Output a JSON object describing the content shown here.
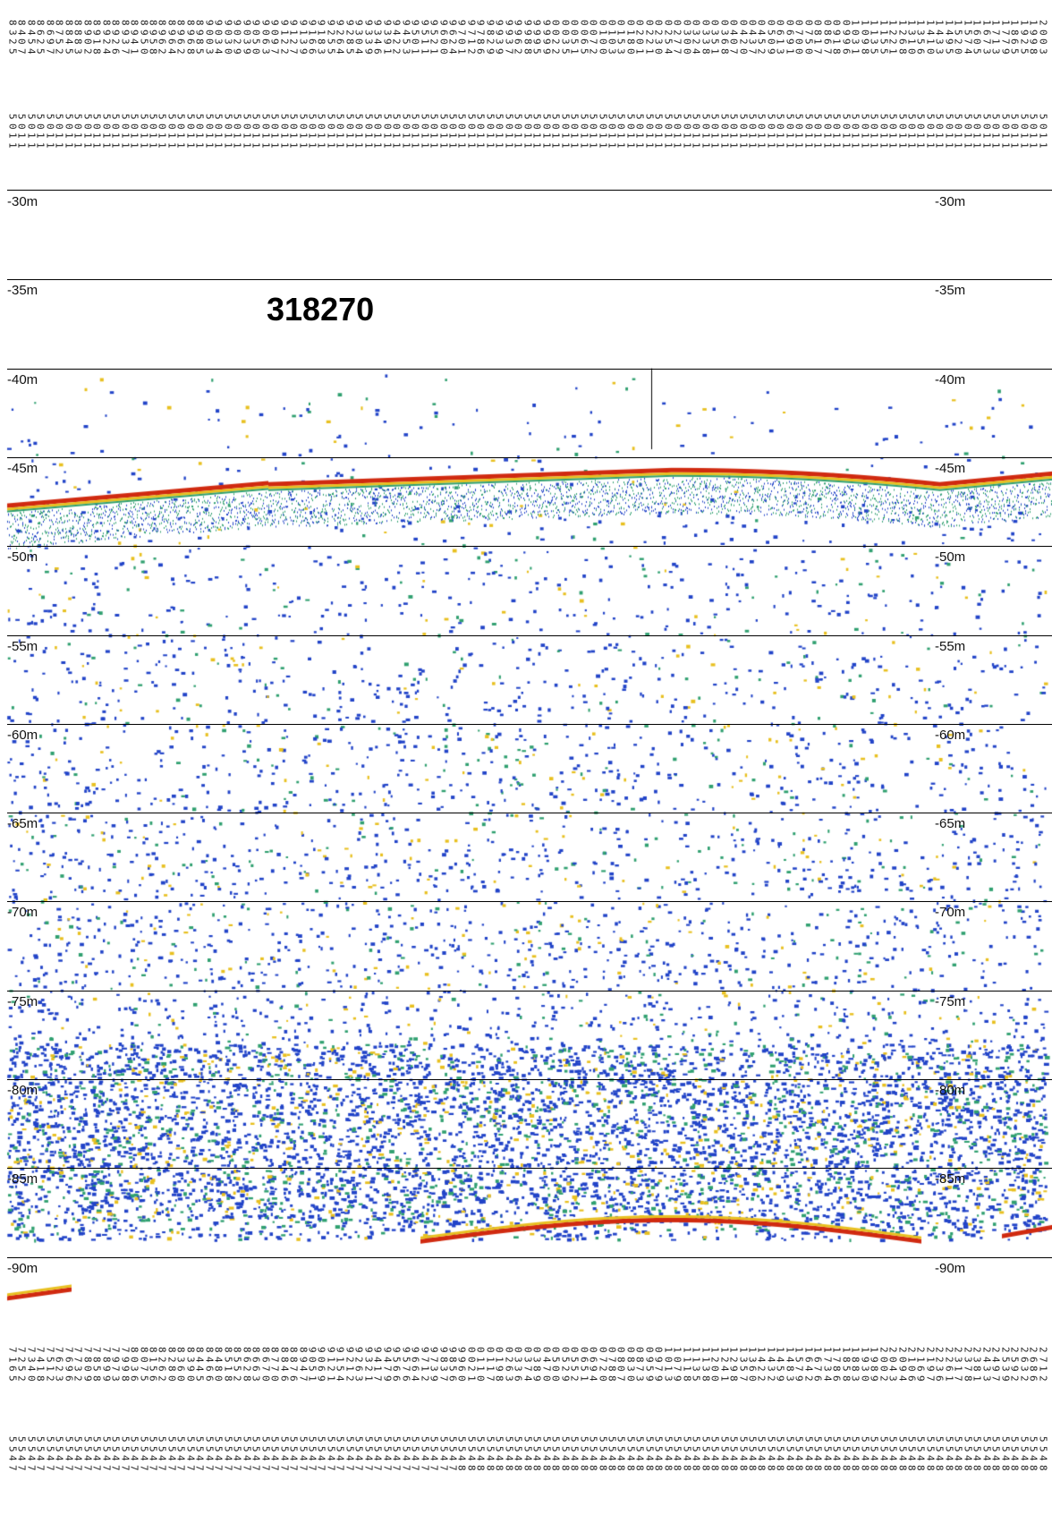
{
  "title": "318270",
  "depth_axis": {
    "labels": [
      "-30m",
      "-35m",
      "-40m",
      "-45m",
      "-50m",
      "-55m",
      "-60m",
      "-65m",
      "-70m",
      "-75m",
      "-80m",
      "-85m",
      "-90m"
    ]
  },
  "top_coords": {
    "upper": [
      "8325",
      "8407",
      "8454",
      "8625",
      "8697",
      "8752",
      "8845",
      "8883",
      "8902",
      "8918",
      "8924",
      "8926",
      "8937",
      "8941",
      "8950",
      "8958",
      "8962",
      "8964",
      "8962",
      "8968",
      "8985",
      "9003",
      "9034",
      "9030",
      "9029",
      "9039",
      "9050",
      "9063",
      "9097",
      "9122",
      "9127",
      "9139",
      "9166",
      "9183",
      "9255",
      "9264",
      "9285",
      "9304",
      "9339",
      "9346",
      "9391",
      "9422",
      "9453",
      "9501",
      "9511",
      "9521",
      "9600",
      "9624",
      "9701",
      "9712",
      "9786",
      "9829",
      "9939",
      "9937",
      "9962",
      "9988",
      "9995",
      "9999",
      "0022",
      "0035",
      "0051",
      "0065",
      "0072",
      "0100",
      "0103",
      "0153",
      "0180",
      "0201",
      "0221",
      "0230",
      "0254",
      "0277",
      "0300",
      "0324",
      "0338",
      "0351",
      "0368",
      "0407",
      "0420",
      "0437",
      "0452",
      "0509",
      "0613",
      "0691",
      "0700",
      "0750",
      "0817",
      "0867",
      "0918",
      "0996",
      "1031",
      "1098",
      "1135",
      "1155",
      "1221",
      "1268",
      "1310",
      "1356",
      "1410",
      "1433",
      "1495",
      "1520",
      "1574",
      "1605",
      "1673",
      "1713",
      "1779",
      "1865",
      "1925",
      "1998",
      "2003"
    ],
    "lower": [
      "5011",
      "5011",
      "5011",
      "5011",
      "5011",
      "5011",
      "5011",
      "5011",
      "5011",
      "5011",
      "5011",
      "5011",
      "5011",
      "5011",
      "5011",
      "5011",
      "5011",
      "5011",
      "5011",
      "5011",
      "5011",
      "5011",
      "5011",
      "5011",
      "5011",
      "5011",
      "5011",
      "5011",
      "5011",
      "5011",
      "5011",
      "5011",
      "5011",
      "5011",
      "5011",
      "5011",
      "5011",
      "5011",
      "5011",
      "5011",
      "5011",
      "5011",
      "5011",
      "5011",
      "5011",
      "5011",
      "5011",
      "5011",
      "5011",
      "5011",
      "5011",
      "5011",
      "5011",
      "5011",
      "5011",
      "5011",
      "5011",
      "5011",
      "5011",
      "5011",
      "5011",
      "5011",
      "5011",
      "5011",
      "5011",
      "5011",
      "5011",
      "5011",
      "5011",
      "5011",
      "5011",
      "5011",
      "5011",
      "5011",
      "5011",
      "5011",
      "5011",
      "5011",
      "5011",
      "5011",
      "5011",
      "5011",
      "5011",
      "5011",
      "5011",
      "5011",
      "5011",
      "5011",
      "5011",
      "5011",
      "5011",
      "5011",
      "5011",
      "5011",
      "5011",
      "5011",
      "5011",
      "5011",
      "5011",
      "5011",
      "5011",
      "5011",
      "5011",
      "5011",
      "5011",
      "5011",
      "5011",
      "5011",
      "5011",
      "5011",
      "5011"
    ]
  },
  "bottom_coords": {
    "upper": [
      "7165",
      "7252",
      "7340",
      "7418",
      "7512",
      "7623",
      "7696",
      "7732",
      "7809",
      "7858",
      "7899",
      "7973",
      "7998",
      "8036",
      "8075",
      "8156",
      "8262",
      "8280",
      "8360",
      "8390",
      "8445",
      "8466",
      "8480",
      "8518",
      "8552",
      "8628",
      "8663",
      "8670",
      "8770",
      "8846",
      "8876",
      "8947",
      "9051",
      "9069",
      "9121",
      "9154",
      "9212",
      "9263",
      "9321",
      "9417",
      "9479",
      "9566",
      "9576",
      "9664",
      "9712",
      "9739",
      "9837",
      "9856",
      "9960",
      "0021",
      "0110",
      "0117",
      "0198",
      "0263",
      "0336",
      "0374",
      "0389",
      "0470",
      "0500",
      "0529",
      "0552",
      "0651",
      "0694",
      "0720",
      "0788",
      "0807",
      "0830",
      "0873",
      "0959",
      "0979",
      "1013",
      "1079",
      "1118",
      "1135",
      "1138",
      "1200",
      "1241",
      "1298",
      "1357",
      "1360",
      "1422",
      "1432",
      "1459",
      "1483",
      "1579",
      "1642",
      "1676",
      "1734",
      "1786",
      "1858",
      "1883",
      "1930",
      "1989",
      "2002",
      "2043",
      "2094",
      "2106",
      "2169",
      "2197",
      "2236",
      "2261",
      "2317",
      "2378",
      "2381",
      "2433",
      "2497",
      "2539",
      "2592",
      "2632",
      "2686",
      "2712"
    ],
    "lower": [
      "5547",
      "5547",
      "5547",
      "5547",
      "5547",
      "5547",
      "5547",
      "5547",
      "5547",
      "5547",
      "5547",
      "5547",
      "5547",
      "5547",
      "5547",
      "5547",
      "5547",
      "5547",
      "5547",
      "5547",
      "5547",
      "5547",
      "5547",
      "5547",
      "5547",
      "5547",
      "5547",
      "5547",
      "5547",
      "5547",
      "5547",
      "5547",
      "5547",
      "5547",
      "5547",
      "5547",
      "5547",
      "5547",
      "5547",
      "5547",
      "5547",
      "5547",
      "5547",
      "5547",
      "5547",
      "5547",
      "5547",
      "5547",
      "5548",
      "5548",
      "5548",
      "5548",
      "5548",
      "5548",
      "5548",
      "5548",
      "5548",
      "5548",
      "5548",
      "5548",
      "5548",
      "5548",
      "5548",
      "5548",
      "5548",
      "5548",
      "5548",
      "5548",
      "5548",
      "5548",
      "5548",
      "5548",
      "5548",
      "5548",
      "5548",
      "5548",
      "5548",
      "5548",
      "5548",
      "5548",
      "5548",
      "5548",
      "5548",
      "5548",
      "5548",
      "5548",
      "5548",
      "5548",
      "5548",
      "5548",
      "5548",
      "5548",
      "5548",
      "5548",
      "5548",
      "5548",
      "5548",
      "5548",
      "5548",
      "5548",
      "5548",
      "5548",
      "5548",
      "5548",
      "5548",
      "5548",
      "5548",
      "5548",
      "5548",
      "5548",
      "5548"
    ]
  },
  "colors": {
    "strong": "#d02a10",
    "mid": "#e8c020",
    "weak": "#30a070",
    "faint": "#2244c8",
    "grid": "#000000"
  }
}
